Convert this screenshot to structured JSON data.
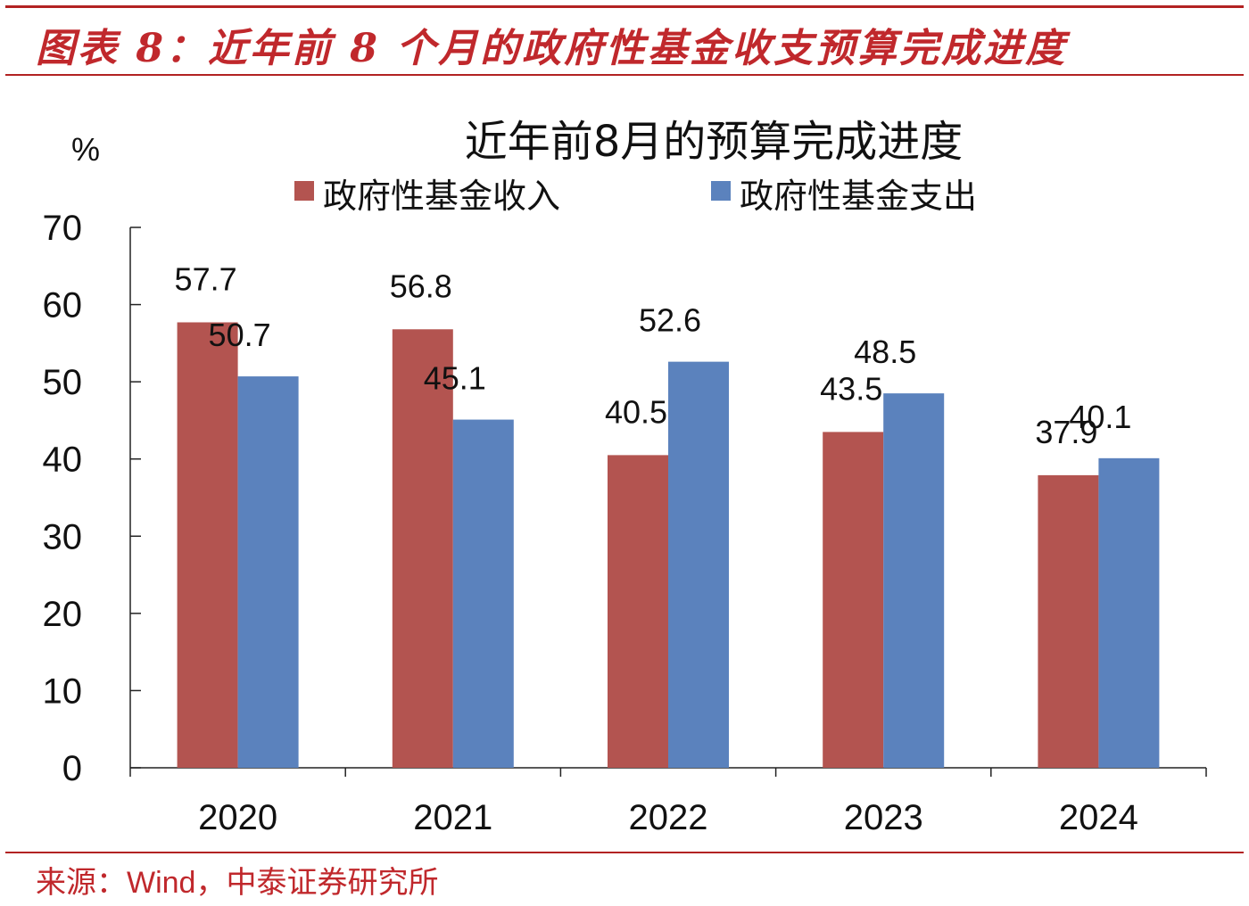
{
  "header": {
    "figure_title": "图表 8：近年前 8 个月的政府性基金收支预算完成进度"
  },
  "footer": {
    "source_prefix": "来源：",
    "source_name": "Wind",
    "source_suffix": "，中泰证券研究所"
  },
  "chart_data": {
    "type": "bar",
    "title": "近年前8月的预算完成进度",
    "unit": "%",
    "categories": [
      "2020",
      "2021",
      "2022",
      "2023",
      "2024"
    ],
    "series": [
      {
        "name": "政府性基金收入",
        "color": "#b35450",
        "values": [
          57.7,
          56.8,
          40.5,
          43.5,
          37.9
        ],
        "labels": [
          "57.7",
          "56.8",
          "40.5",
          "43.5",
          "37.9"
        ]
      },
      {
        "name": "政府性基金支出",
        "color": "#5b82bd",
        "values": [
          50.7,
          45.1,
          52.6,
          48.5,
          40.1
        ],
        "labels": [
          "50.7",
          "45.1",
          "52.6",
          "48.5",
          "40.1"
        ]
      }
    ],
    "ylim": [
      0,
      70
    ],
    "yticks": [
      0,
      10,
      20,
      30,
      40,
      50,
      60,
      70
    ],
    "ytick_labels": [
      "0",
      "10",
      "20",
      "30",
      "40",
      "50",
      "60",
      "70"
    ],
    "xlabel": "",
    "ylabel": "%",
    "grid": false,
    "legend_position": "top"
  }
}
